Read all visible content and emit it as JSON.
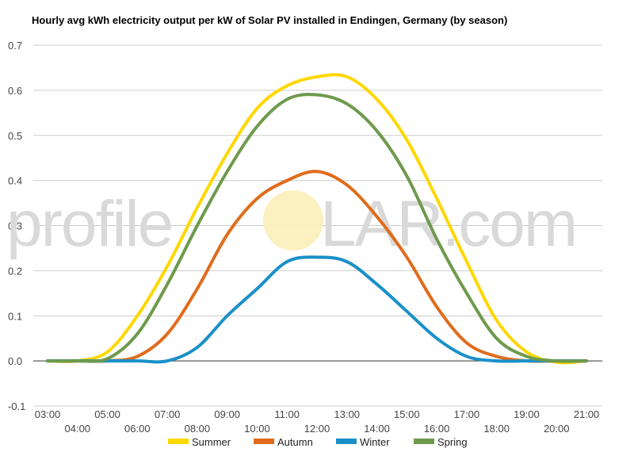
{
  "watermark": {
    "pre": "profile",
    "post": "LAR.com"
  },
  "chart_data": {
    "type": "line",
    "title": "Hourly avg kWh electricity output per kW of Solar PV installed in Endingen, Germany (by season)",
    "xlabel": "",
    "ylabel": "",
    "ylim": [
      -0.1,
      0.7
    ],
    "yticks": [
      "-0.1",
      "0.0",
      "0.1",
      "0.2",
      "0.3",
      "0.4",
      "0.5",
      "0.6",
      "0.7"
    ],
    "grid": true,
    "legend": "bottom",
    "categories": [
      "03:00",
      "04:00",
      "05:00",
      "06:00",
      "07:00",
      "08:00",
      "09:00",
      "10:00",
      "11:00",
      "12:00",
      "13:00",
      "14:00",
      "15:00",
      "16:00",
      "17:00",
      "18:00",
      "19:00",
      "20:00",
      "21:00"
    ],
    "series": [
      {
        "name": "Summer",
        "color": "#ffd700",
        "values": [
          0.0,
          0.0,
          0.02,
          0.1,
          0.21,
          0.34,
          0.46,
          0.56,
          0.61,
          0.63,
          0.63,
          0.58,
          0.49,
          0.36,
          0.22,
          0.09,
          0.02,
          -0.003,
          0.0
        ]
      },
      {
        "name": "Autumn",
        "color": "#e06c1c",
        "values": [
          0.0,
          0.0,
          0.0,
          0.01,
          0.06,
          0.16,
          0.28,
          0.36,
          0.4,
          0.42,
          0.39,
          0.32,
          0.23,
          0.12,
          0.04,
          0.01,
          0.0,
          0.0,
          0.0
        ]
      },
      {
        "name": "Winter",
        "color": "#1a90c8",
        "values": [
          0.0,
          0.0,
          0.0,
          0.0,
          0.0,
          0.03,
          0.1,
          0.16,
          0.22,
          0.23,
          0.22,
          0.17,
          0.11,
          0.05,
          0.01,
          0.0,
          0.0,
          0.0,
          0.0
        ]
      },
      {
        "name": "Spring",
        "color": "#6e9a4c",
        "values": [
          0.0,
          0.0,
          0.005,
          0.06,
          0.17,
          0.3,
          0.42,
          0.52,
          0.58,
          0.59,
          0.57,
          0.51,
          0.41,
          0.27,
          0.15,
          0.05,
          0.01,
          0.0,
          0.0
        ]
      }
    ]
  }
}
